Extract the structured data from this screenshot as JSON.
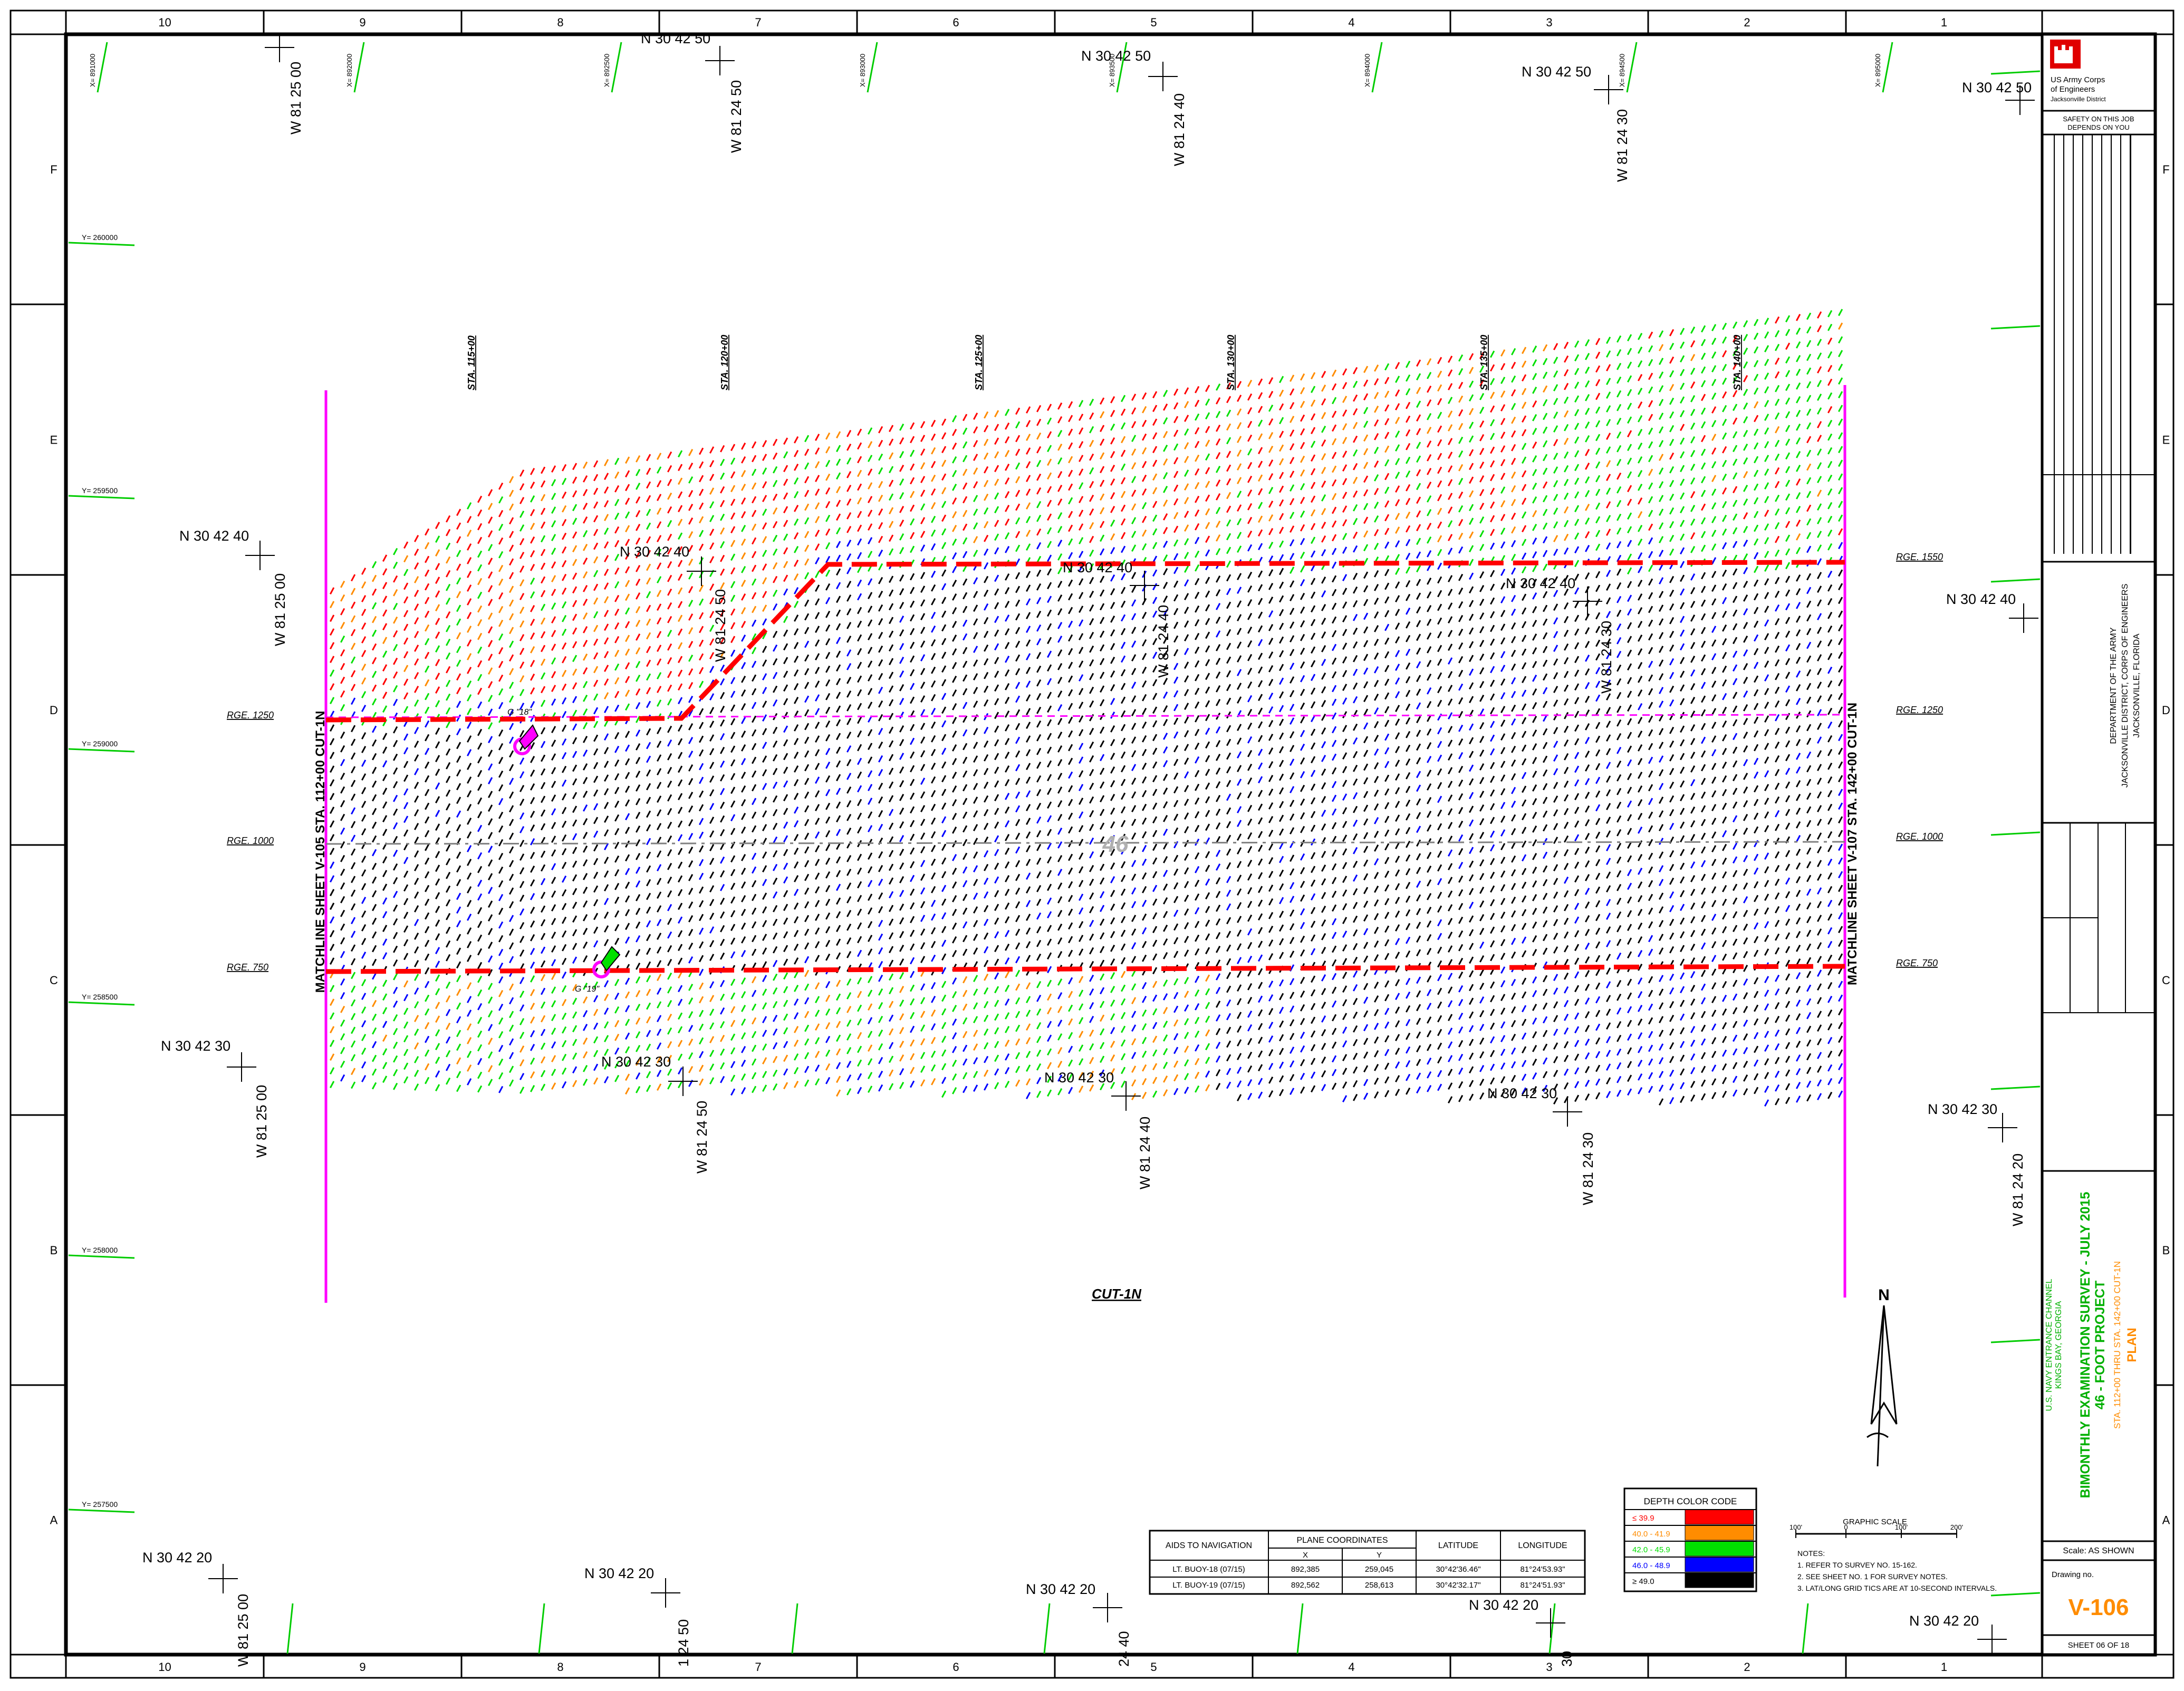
{
  "columns": [
    "10",
    "9",
    "8",
    "7",
    "6",
    "5",
    "4",
    "3",
    "2",
    "1"
  ],
  "rows": [
    "F",
    "E",
    "D",
    "C",
    "B",
    "A"
  ],
  "x_ticks": [
    "X= 891000",
    "X= 892000",
    "X= 892500",
    "X= 893000",
    "X= 893500",
    "X= 894000",
    "X= 894500",
    "X= 895000"
  ],
  "y_ticks": [
    "Y= 260000",
    "Y= 259500",
    "Y= 259000",
    "Y= 258500",
    "Y= 258000",
    "Y= 257500"
  ],
  "lat_labels": [
    "N 30 42 50",
    "N 30 42 50",
    "N 30 42 50",
    "N 30 42 50",
    "N 30 42 40",
    "N 30 42 40",
    "N 30 42 40",
    "N 30 42 40",
    "N 30 42 40",
    "N 30 42 30",
    "N 30 42 30",
    "N 30 42 30",
    "N 30 42 30",
    "N 30 42 30",
    "N 30 42 20",
    "N 30 42 20",
    "N 30 42 20",
    "N 30 42 20",
    "N 30 42 20"
  ],
  "lon_labels": [
    "W 81 25 00",
    "W 81 24 50",
    "W 81 24 40",
    "W 81 24 30",
    "W 81 25 00",
    "W 81 24 50",
    "W 81 24 40",
    "W 81 24 30",
    "W 81 25 00",
    "W 81 24 50",
    "W 81 24 40",
    "W 81 24 30",
    "W 81 24 20",
    "W 81 25 00",
    "1 24 50",
    "24 40",
    "30"
  ],
  "stations": [
    "STA. 115+00",
    "STA. 120+00",
    "STA. 125+00",
    "STA. 130+00",
    "STA. 135+00",
    "STA. 140+00"
  ],
  "ranges": [
    "RGE. 1250",
    "RGE. 1000",
    "RGE. 750",
    "RGE. 1550",
    "RGE. 1250",
    "RGE. 1000",
    "RGE. 750"
  ],
  "matchline_left": "MATCHLINE SHEET V-105 STA. 112+00 CUT-1N",
  "matchline_right": "MATCHLINE SHEET V-107 STA. 142+00 CUT-1N",
  "cut_label": "CUT-1N",
  "channel_depth": "46",
  "buoy_labels": [
    "G \"18\"",
    "G \"19\""
  ],
  "depth_legend": {
    "title": "DEPTH COLOR CODE",
    "rows": [
      {
        "range": "≤ 39.9",
        "color": "#ff0000"
      },
      {
        "range": "40.0 - 41.9",
        "color": "#ff8c00"
      },
      {
        "range": "42.0 - 45.9",
        "color": "#00e000"
      },
      {
        "range": "46.0 - 48.9",
        "color": "#0000ff"
      },
      {
        "range": "≥ 49.0",
        "color": "#000000"
      }
    ]
  },
  "aids_table": {
    "headers": [
      "AIDS TO NAVIGATION",
      "PLANE COORDINATES",
      "LATITUDE",
      "LONGITUDE"
    ],
    "sub_headers": [
      "X",
      "Y"
    ],
    "rows": [
      [
        "LT. BUOY-18 (07/15)",
        "892,385",
        "259,045",
        "30°42'36.46\"",
        "81°24'53.93\""
      ],
      [
        "LT. BUOY-19 (07/15)",
        "892,562",
        "258,613",
        "30°42'32.17\"",
        "81°24'51.93\""
      ]
    ]
  },
  "graphic_scale": {
    "title": "GRAPHIC SCALE",
    "ticks": [
      "100'",
      "0",
      "100'",
      "200'"
    ]
  },
  "notes": [
    "NOTES:",
    "1. REFER TO SURVEY NO. 15-162.",
    "2. SEE SHEET NO. 1 FOR SURVEY NOTES.",
    "3. LAT/LONG GRID TICS ARE AT 10-SECOND INTERVALS."
  ],
  "north": "N",
  "title_block": {
    "org1": "US Army Corps",
    "org2": "of Engineers",
    "org3": "Jacksonville District",
    "safety1": "SAFETY ON THIS JOB",
    "safety2": "DEPENDS ON YOU",
    "dept1": "DEPARTMENT OF THE ARMY",
    "dept2": "JACKSONVILLE DISTRICT, CORPS OF ENGINEERS",
    "dept3": "JACKSONVILLE, FLORIDA",
    "project1": "U.S. NAVY ENTRANCE CHANNEL",
    "project2": "KINGS BAY, GEORGIA",
    "title1": "BIMONTHLY EXAMINATION SURVEY - JULY 2015",
    "title2": "46 - FOOT PROJECT",
    "title3": "STA. 112+00 THRU STA. 142+00 CUT-1N",
    "title4": "PLAN",
    "scale": "Scale:  AS SHOWN",
    "drawing_label": "Drawing no.",
    "drawing_no": "V-106",
    "sheet": "SHEET  06  OF  18"
  },
  "colors": {
    "red": "#ff0000",
    "orange": "#ff8c00",
    "green": "#00e000",
    "blue": "#0000ff",
    "black": "#000000",
    "magenta": "#ff00ff",
    "boundary": "#ff0000",
    "tick_green": "#00cc00",
    "title_orange": "#ff8c00",
    "title_green": "#00b000"
  }
}
